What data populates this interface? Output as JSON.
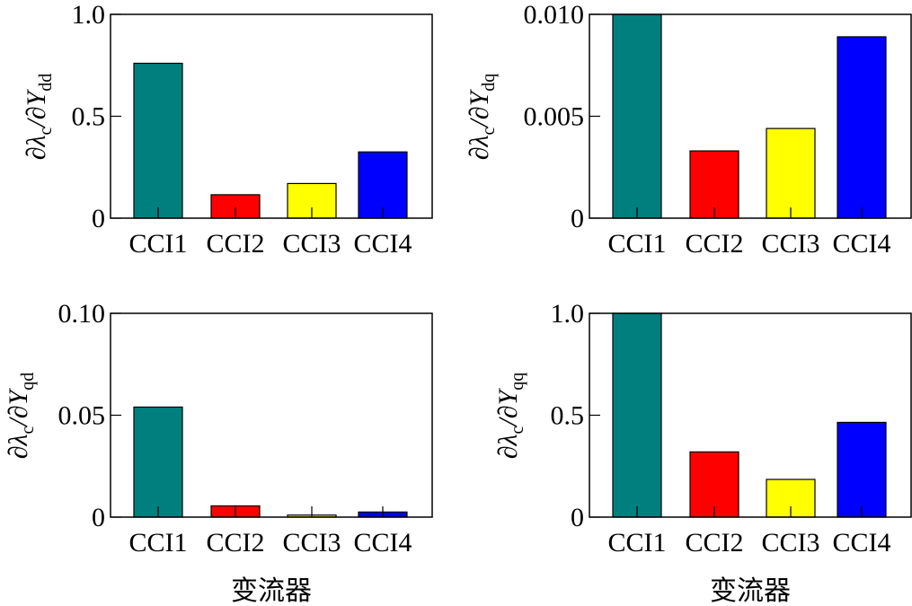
{
  "chart_data": [
    {
      "type": "bar",
      "categories": [
        "CCI1",
        "CCI2",
        "CCI3",
        "CCI4"
      ],
      "values": [
        0.76,
        0.115,
        0.17,
        0.325
      ],
      "colors": [
        "#007f7f",
        "#ff0000",
        "#ffff00",
        "#0000ff"
      ],
      "ylim": [
        0,
        1.0
      ],
      "yticks": [
        0,
        0.5,
        1.0
      ],
      "ytick_labels": [
        "0",
        "0.5",
        "1.0"
      ],
      "ylabel": "∂λc/∂Ydd",
      "ylabel_parts": {
        "prefix": "∂λ",
        "sub1": "c",
        "middle": "/∂Y",
        "sub2": "dd"
      },
      "xlabel": ""
    },
    {
      "type": "bar",
      "categories": [
        "CCI1",
        "CCI2",
        "CCI3",
        "CCI4"
      ],
      "values": [
        0.01,
        0.0033,
        0.0044,
        0.0089
      ],
      "colors": [
        "#007f7f",
        "#ff0000",
        "#ffff00",
        "#0000ff"
      ],
      "ylim": [
        0,
        0.01
      ],
      "yticks": [
        0,
        0.005,
        0.01
      ],
      "ytick_labels": [
        "0",
        "0.005",
        "0.010"
      ],
      "ylabel": "∂λc/∂Ydq",
      "ylabel_parts": {
        "prefix": "∂λ",
        "sub1": "c",
        "middle": "/∂Y",
        "sub2": "dq"
      },
      "xlabel": ""
    },
    {
      "type": "bar",
      "categories": [
        "CCI1",
        "CCI2",
        "CCI3",
        "CCI4"
      ],
      "values": [
        0.054,
        0.0055,
        0.001,
        0.0025
      ],
      "colors": [
        "#007f7f",
        "#ff0000",
        "#ffff00",
        "#0000ff"
      ],
      "ylim": [
        0,
        0.1
      ],
      "yticks": [
        0,
        0.05,
        0.1
      ],
      "ytick_labels": [
        "0",
        "0.05",
        "0.10"
      ],
      "ylabel": "∂λc/∂Yqd",
      "ylabel_parts": {
        "prefix": "∂λ",
        "sub1": "c",
        "middle": "/∂Y",
        "sub2": "qd"
      },
      "xlabel": "变流器"
    },
    {
      "type": "bar",
      "categories": [
        "CCI1",
        "CCI2",
        "CCI3",
        "CCI4"
      ],
      "values": [
        1.0,
        0.32,
        0.185,
        0.465
      ],
      "colors": [
        "#007f7f",
        "#ff0000",
        "#ffff00",
        "#0000ff"
      ],
      "ylim": [
        0,
        1.0
      ],
      "yticks": [
        0,
        0.5,
        1.0
      ],
      "ytick_labels": [
        "0",
        "0.5",
        "1.0"
      ],
      "ylabel": "∂λc/∂Yqq",
      "ylabel_parts": {
        "prefix": "∂λ",
        "sub1": "c",
        "middle": "/∂Y",
        "sub2": "qq"
      },
      "xlabel": "变流器"
    }
  ]
}
